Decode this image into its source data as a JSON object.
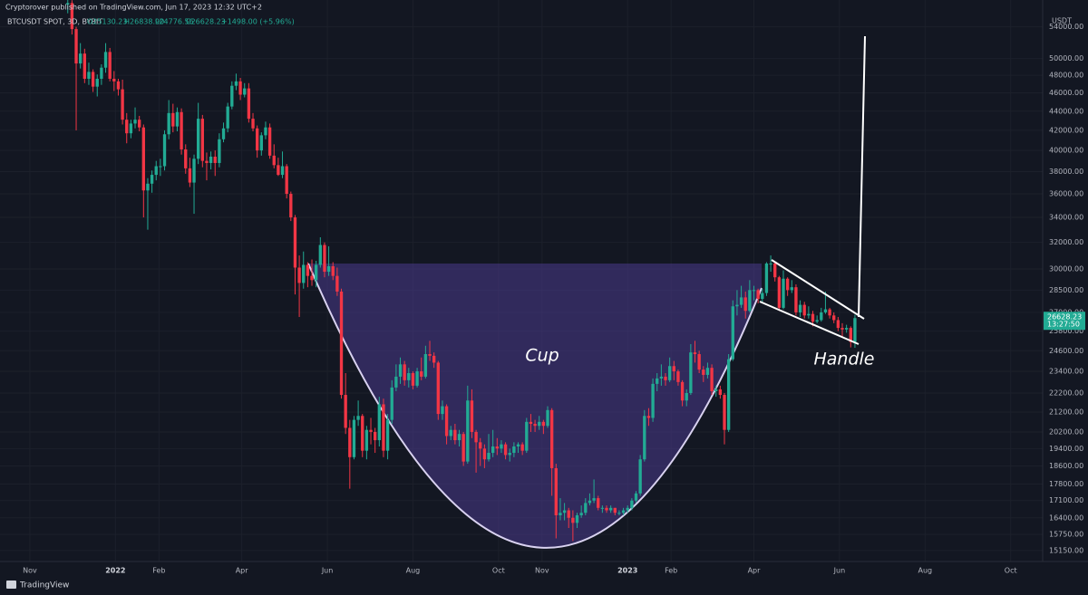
{
  "chart_data": {
    "type": "candlestick",
    "publisher_note": "Cryptorover published on TradingView.com, Jun 17, 2023 12:32 UTC+2",
    "symbol": "BTCUSDT SPOT, 3D, BYBIT",
    "ohlc_labels": [
      "O25130.23",
      "H26838.90",
      "L24776.56",
      "C26628.23"
    ],
    "change_label": "+1498.00 (+5.96%)",
    "currency": "USDT",
    "countdown": "13:27:50",
    "annotations": [
      "Cup",
      "Handle"
    ],
    "brand": "TradingView",
    "up_color": "#22ab94",
    "down_color": "#f23645",
    "cup_color": "#4a3a8c",
    "log_scale": true,
    "grid": true,
    "xlim": [
      -7.1,
      240.6
    ],
    "ylim": [
      14750,
      55150
    ],
    "xticks": [
      {
        "value": 0,
        "label": "Nov"
      },
      {
        "value": 20.33,
        "label": "2022"
      },
      {
        "value": 30.67,
        "label": "Feb"
      },
      {
        "value": 50.33,
        "label": "Apr"
      },
      {
        "value": 70.67,
        "label": "Jun"
      },
      {
        "value": 91,
        "label": "Aug"
      },
      {
        "value": 111.33,
        "label": "Oct"
      },
      {
        "value": 121.67,
        "label": "Nov"
      },
      {
        "value": 142,
        "label": "2023"
      },
      {
        "value": 152.33,
        "label": "Feb"
      },
      {
        "value": 172,
        "label": "Apr"
      },
      {
        "value": 192.33,
        "label": "Jun"
      },
      {
        "value": 212.67,
        "label": "Aug"
      },
      {
        "value": 233,
        "label": "Oct"
      }
    ],
    "yticks": [
      {
        "value": 15150,
        "label": "15150.00"
      },
      {
        "value": 15750,
        "label": "15750.00"
      },
      {
        "value": 16400,
        "label": "16400.00"
      },
      {
        "value": 17100,
        "label": "17100.00"
      },
      {
        "value": 17800,
        "label": "17800.00"
      },
      {
        "value": 18600,
        "label": "18600.00"
      },
      {
        "value": 19400,
        "label": "19400.00"
      },
      {
        "value": 20200,
        "label": "20200.00"
      },
      {
        "value": 21200,
        "label": "21200.00"
      },
      {
        "value": 22200,
        "label": "22200.00"
      },
      {
        "value": 23400,
        "label": "23400.00"
      },
      {
        "value": 24600,
        "label": "24600.00"
      },
      {
        "value": 25800,
        "label": "25800.00"
      },
      {
        "value": 27000,
        "label": "27000.00"
      },
      {
        "value": 28500,
        "label": "28500.00"
      },
      {
        "value": 30000,
        "label": "30000.00"
      },
      {
        "value": 32000,
        "label": "32000.00"
      },
      {
        "value": 34000,
        "label": "34000.00"
      },
      {
        "value": 36000,
        "label": "36000.00"
      },
      {
        "value": 38000,
        "label": "38000.00"
      },
      {
        "value": 40000,
        "label": "40000.00"
      },
      {
        "value": 42000,
        "label": "42000.00"
      },
      {
        "value": 44000,
        "label": "44000.00"
      },
      {
        "value": 46000,
        "label": "46000.00"
      },
      {
        "value": 48000,
        "label": "48000.00"
      },
      {
        "value": 50000,
        "label": "50000.00"
      },
      {
        "value": 54000,
        "label": "54000.00"
      }
    ],
    "x": [
      9,
      10,
      11,
      12,
      13,
      14,
      15,
      16,
      17,
      18,
      19,
      20,
      21,
      22,
      23,
      24,
      25,
      26,
      27,
      28,
      29,
      30,
      31,
      32,
      33,
      34,
      35,
      36,
      37,
      38,
      39,
      40,
      41,
      42,
      43,
      44,
      45,
      46,
      47,
      48,
      49,
      50,
      51,
      52,
      53,
      54,
      55,
      56,
      57,
      58,
      59,
      60,
      61,
      62,
      63,
      64,
      65,
      66,
      67,
      68,
      69,
      70,
      71,
      72,
      73,
      74,
      75,
      76,
      77,
      78,
      79,
      80,
      81,
      82,
      83,
      84,
      85,
      86,
      87,
      88,
      89,
      90,
      91,
      92,
      93,
      94,
      95,
      96,
      97,
      98,
      99,
      100,
      101,
      102,
      103,
      104,
      105,
      106,
      107,
      108,
      109,
      110,
      111,
      112,
      113,
      114,
      115,
      116,
      117,
      118,
      119,
      120,
      121,
      122,
      123,
      124,
      125,
      126,
      127,
      128,
      129,
      130,
      131,
      132,
      133,
      134,
      135,
      136,
      137,
      138,
      139,
      140,
      141,
      142,
      143,
      144,
      145,
      146,
      147,
      148,
      149,
      150,
      151,
      152,
      153,
      154,
      155,
      156,
      157,
      158,
      159,
      160,
      161,
      162,
      163,
      164,
      165,
      166,
      167,
      168,
      169,
      170,
      171,
      172,
      173,
      174,
      175,
      176,
      177,
      178,
      179,
      180,
      181,
      182,
      183,
      184,
      185,
      186,
      187,
      188,
      189,
      190,
      191,
      192,
      193,
      194,
      195,
      196
    ],
    "candles": [
      [
        57000,
        59100,
        55800,
        57200
      ],
      [
        57200,
        57600,
        53000,
        53700
      ],
      [
        53700,
        54000,
        42000,
        49400
      ],
      [
        49400,
        51900,
        48800,
        50600
      ],
      [
        50600,
        51200,
        47100,
        47600
      ],
      [
        47600,
        49500,
        46900,
        48400
      ],
      [
        48400,
        48700,
        46100,
        46700
      ],
      [
        46700,
        48100,
        45600,
        47600
      ],
      [
        47600,
        49300,
        46900,
        48900
      ],
      [
        48900,
        51900,
        48300,
        50800
      ],
      [
        50800,
        51300,
        47300,
        47600
      ],
      [
        47600,
        48500,
        46200,
        47300
      ],
      [
        47300,
        47600,
        45700,
        46400
      ],
      [
        46400,
        47500,
        42600,
        43100
      ],
      [
        43100,
        43800,
        40700,
        41700
      ],
      [
        41700,
        43100,
        41200,
        42700
      ],
      [
        42700,
        44400,
        42200,
        43100
      ],
      [
        43100,
        43500,
        41900,
        42300
      ],
      [
        42300,
        42600,
        34000,
        36300
      ],
      [
        36300,
        37400,
        33000,
        36900
      ],
      [
        36900,
        38100,
        36100,
        37700
      ],
      [
        37700,
        39000,
        37200,
        38500
      ],
      [
        38500,
        39200,
        37600,
        38500
      ],
      [
        38500,
        42000,
        38100,
        41600
      ],
      [
        41600,
        45200,
        41100,
        43800
      ],
      [
        43800,
        44800,
        41800,
        42400
      ],
      [
        42400,
        44400,
        41900,
        43900
      ],
      [
        43900,
        44300,
        39600,
        40100
      ],
      [
        40100,
        40600,
        37800,
        38300
      ],
      [
        38300,
        39300,
        36600,
        37000
      ],
      [
        37000,
        39600,
        34300,
        39200
      ],
      [
        39200,
        44900,
        38700,
        43200
      ],
      [
        43200,
        43600,
        38400,
        39000
      ],
      [
        39000,
        39800,
        37200,
        38800
      ],
      [
        38800,
        39900,
        38200,
        39400
      ],
      [
        39400,
        40000,
        37600,
        38800
      ],
      [
        38800,
        41700,
        38400,
        41100
      ],
      [
        41100,
        42800,
        40800,
        42200
      ],
      [
        42200,
        44900,
        41800,
        44500
      ],
      [
        44500,
        47300,
        44200,
        46800
      ],
      [
        46800,
        48200,
        46300,
        47300
      ],
      [
        47300,
        47700,
        45200,
        45800
      ],
      [
        45800,
        47100,
        45500,
        46500
      ],
      [
        46500,
        47100,
        42800,
        43200
      ],
      [
        43200,
        43800,
        41900,
        42200
      ],
      [
        42200,
        42500,
        39300,
        40000
      ],
      [
        40000,
        41800,
        39500,
        41500
      ],
      [
        41500,
        42900,
        41100,
        42300
      ],
      [
        42300,
        42700,
        39200,
        39500
      ],
      [
        39500,
        40600,
        38300,
        38600
      ],
      [
        38600,
        39300,
        37600,
        37700
      ],
      [
        37700,
        39900,
        37400,
        38500
      ],
      [
        38500,
        38700,
        35600,
        36000
      ],
      [
        36000,
        36200,
        33700,
        34000
      ],
      [
        34000,
        34200,
        28200,
        30100
      ],
      [
        30100,
        31000,
        26700,
        29000
      ],
      [
        29000,
        31300,
        28600,
        30300
      ],
      [
        30300,
        30500,
        28700,
        29500
      ],
      [
        29500,
        30700,
        28800,
        29200
      ],
      [
        29200,
        30600,
        28700,
        30300
      ],
      [
        30300,
        32400,
        30100,
        31800
      ],
      [
        31800,
        32000,
        29400,
        29800
      ],
      [
        29800,
        31700,
        29500,
        30200
      ],
      [
        30200,
        30500,
        29200,
        29500
      ],
      [
        29500,
        30100,
        28100,
        28400
      ],
      [
        28400,
        28600,
        21900,
        22100
      ],
      [
        22100,
        23300,
        20100,
        20400
      ],
      [
        20400,
        20800,
        17600,
        19000
      ],
      [
        19000,
        21000,
        18900,
        20800
      ],
      [
        20800,
        21800,
        20500,
        21000
      ],
      [
        21000,
        21100,
        19000,
        19300
      ],
      [
        19300,
        20500,
        18900,
        20300
      ],
      [
        20300,
        20900,
        19600,
        20200
      ],
      [
        20200,
        20400,
        19200,
        19800
      ],
      [
        19800,
        22000,
        19500,
        21600
      ],
      [
        21600,
        21900,
        19000,
        19300
      ],
      [
        19300,
        21100,
        18900,
        20800
      ],
      [
        20800,
        22900,
        20600,
        22500
      ],
      [
        22500,
        23800,
        22300,
        23100
      ],
      [
        23100,
        24200,
        22700,
        23800
      ],
      [
        23800,
        24000,
        22600,
        22900
      ],
      [
        22900,
        23600,
        22500,
        23300
      ],
      [
        23300,
        23400,
        22400,
        22600
      ],
      [
        22600,
        23600,
        22500,
        23400
      ],
      [
        23400,
        24200,
        22900,
        23100
      ],
      [
        23100,
        24900,
        23000,
        24400
      ],
      [
        24400,
        25200,
        24000,
        24300
      ],
      [
        24300,
        24500,
        23600,
        23900
      ],
      [
        23900,
        24000,
        20800,
        21100
      ],
      [
        21100,
        21800,
        20800,
        21500
      ],
      [
        21500,
        21600,
        19600,
        20000
      ],
      [
        20000,
        20500,
        19800,
        20300
      ],
      [
        20300,
        20600,
        19600,
        19800
      ],
      [
        19800,
        20300,
        19500,
        20100
      ],
      [
        20100,
        20200,
        18600,
        18800
      ],
      [
        18800,
        22600,
        18700,
        21800
      ],
      [
        21800,
        22400,
        19900,
        20200
      ],
      [
        20200,
        20300,
        18300,
        19700
      ],
      [
        19700,
        19900,
        18600,
        19400
      ],
      [
        19400,
        19600,
        18500,
        18900
      ],
      [
        18900,
        20100,
        18800,
        19200
      ],
      [
        19200,
        20300,
        19000,
        19500
      ],
      [
        19500,
        19900,
        19100,
        19400
      ],
      [
        19400,
        19800,
        19200,
        19600
      ],
      [
        19600,
        19700,
        18900,
        19100
      ],
      [
        19100,
        19400,
        18800,
        19200
      ],
      [
        19200,
        19700,
        19000,
        19500
      ],
      [
        19500,
        19700,
        19200,
        19600
      ],
      [
        19600,
        19700,
        19100,
        19300
      ],
      [
        19300,
        20900,
        19200,
        20700
      ],
      [
        20700,
        21100,
        20200,
        20600
      ],
      [
        20600,
        20800,
        20200,
        20500
      ],
      [
        20500,
        21000,
        20300,
        20700
      ],
      [
        20700,
        20800,
        20100,
        20500
      ],
      [
        20500,
        21500,
        20400,
        21300
      ],
      [
        21300,
        21400,
        17300,
        18500
      ],
      [
        18500,
        18700,
        15600,
        16500
      ],
      [
        16500,
        17200,
        16300,
        16600
      ],
      [
        16600,
        17000,
        16300,
        16700
      ],
      [
        16700,
        16800,
        16000,
        16400
      ],
      [
        16400,
        16700,
        15500,
        16200
      ],
      [
        16200,
        16600,
        16000,
        16500
      ],
      [
        16500,
        16900,
        16400,
        16600
      ],
      [
        16600,
        17200,
        16500,
        17000
      ],
      [
        17000,
        17400,
        16900,
        17100
      ],
      [
        17100,
        18000,
        17000,
        17200
      ],
      [
        17200,
        17300,
        16700,
        16800
      ],
      [
        16800,
        16900,
        16600,
        16800
      ],
      [
        16800,
        16900,
        16600,
        16700
      ],
      [
        16700,
        16900,
        16600,
        16800
      ],
      [
        16800,
        16800,
        16500,
        16600
      ],
      [
        16600,
        16700,
        16500,
        16600
      ],
      [
        16600,
        16800,
        16500,
        16700
      ],
      [
        16700,
        16900,
        16600,
        16800
      ],
      [
        16800,
        17200,
        16700,
        17100
      ],
      [
        17100,
        17500,
        17000,
        17400
      ],
      [
        17400,
        19100,
        17300,
        18900
      ],
      [
        18900,
        21300,
        18800,
        21000
      ],
      [
        21000,
        21400,
        20500,
        20900
      ],
      [
        20900,
        23000,
        20700,
        22700
      ],
      [
        22700,
        23300,
        22300,
        23000
      ],
      [
        23000,
        23800,
        22600,
        23100
      ],
      [
        23100,
        23300,
        22600,
        22900
      ],
      [
        22900,
        24200,
        22800,
        23700
      ],
      [
        23700,
        24000,
        22900,
        23400
      ],
      [
        23400,
        23500,
        22600,
        22800
      ],
      [
        22800,
        22900,
        21500,
        21800
      ],
      [
        21800,
        22400,
        21500,
        22200
      ],
      [
        22200,
        25000,
        22100,
        24500
      ],
      [
        24500,
        25200,
        23900,
        24400
      ],
      [
        24400,
        24600,
        23300,
        23500
      ],
      [
        23500,
        23700,
        22800,
        23200
      ],
      [
        23200,
        23900,
        23000,
        23600
      ],
      [
        23600,
        23800,
        22100,
        22300
      ],
      [
        22300,
        22600,
        22000,
        22400
      ],
      [
        22400,
        22600,
        21900,
        22100
      ],
      [
        22100,
        22200,
        19600,
        20300
      ],
      [
        20300,
        24400,
        20200,
        24100
      ],
      [
        24100,
        27800,
        24000,
        27400
      ],
      [
        27400,
        28500,
        26800,
        27500
      ],
      [
        27500,
        28800,
        27300,
        28000
      ],
      [
        28000,
        28400,
        26600,
        27100
      ],
      [
        27100,
        29200,
        27000,
        28500
      ],
      [
        28500,
        28800,
        27800,
        28500
      ],
      [
        28500,
        28600,
        27600,
        27900
      ],
      [
        27900,
        28600,
        27700,
        28300
      ],
      [
        28300,
        30500,
        28100,
        30400
      ],
      [
        30400,
        31000,
        29800,
        30400
      ],
      [
        30400,
        30500,
        29100,
        29400
      ],
      [
        29400,
        29500,
        27100,
        27300
      ],
      [
        27300,
        29900,
        27200,
        29300
      ],
      [
        29300,
        29400,
        28100,
        28500
      ],
      [
        28500,
        29200,
        28300,
        28700
      ],
      [
        28700,
        28900,
        26800,
        27000
      ],
      [
        27000,
        27800,
        26700,
        27500
      ],
      [
        27500,
        27700,
        26600,
        26800
      ],
      [
        26800,
        27400,
        26600,
        26900
      ],
      [
        26900,
        27100,
        26100,
        26400
      ],
      [
        26400,
        26800,
        26300,
        26500
      ],
      [
        26500,
        27300,
        26400,
        27000
      ],
      [
        27000,
        28400,
        26900,
        27200
      ],
      [
        27200,
        27300,
        26600,
        26800
      ],
      [
        26800,
        27000,
        26300,
        26500
      ],
      [
        26500,
        26700,
        25800,
        26000
      ],
      [
        26000,
        26300,
        25400,
        25900
      ],
      [
        25900,
        26200,
        25700,
        26000
      ],
      [
        26000,
        26100,
        24800,
        25130.23
      ],
      [
        25130.23,
        26838.9,
        24776.56,
        26628.23
      ]
    ]
  }
}
